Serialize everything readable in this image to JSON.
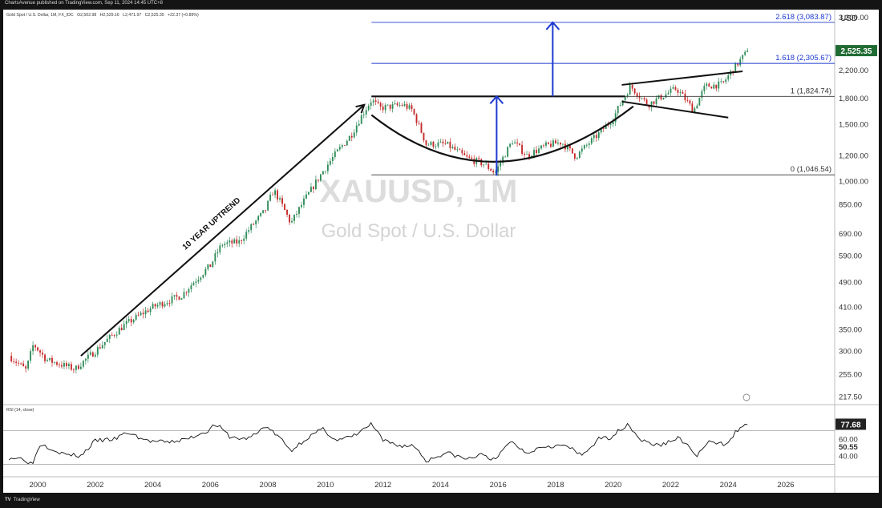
{
  "header": {
    "publisher": "ChartsAvenue published on TradingView.com, Sep 11, 2024 14:45 UTC+8"
  },
  "symbol_info": {
    "name": "Gold Spot / U.S. Dollar, 1M, FX_IDC",
    "open": "O2,502.98",
    "high": "H2,529.16",
    "low": "L2,471.97",
    "close": "C2,525.35",
    "change": "+22.37 (+0.89%)"
  },
  "watermark": {
    "ticker": "XAUUSD, 1M",
    "description": "Gold Spot / U.S. Dollar"
  },
  "colors": {
    "up": "#2e8b57",
    "down": "#c62828",
    "fib": "#1e3ad2",
    "arrow": "#1e3ad2",
    "line": "#111111",
    "price_badge": "#1f6b33",
    "rsi_line": "#111111"
  },
  "chart_data": [
    {
      "type": "candlestick",
      "title": "Gold Spot / U.S. Dollar, 1M, FX_IDC",
      "currency": "USD",
      "x_range": [
        1998.8,
        2027.7
      ],
      "y_range_log": [
        210,
        3300
      ],
      "y_scale": "log",
      "y_ticks": [
        "3,200.00",
        "2,200.00",
        "1,800.00",
        "1,500.00",
        "1,200.00",
        "1,000.00",
        "850.00",
        "690.00",
        "590.00",
        "490.00",
        "410.00",
        "350.00",
        "300.00",
        "255.00",
        "217.50"
      ],
      "y_tick_values": [
        3200,
        2200,
        1800,
        1500,
        1200,
        1000,
        850,
        690,
        590,
        490,
        410,
        350,
        300,
        255,
        217.5
      ],
      "x_ticks": [
        "2000",
        "2002",
        "2004",
        "2006",
        "2008",
        "2010",
        "2012",
        "2014",
        "2016",
        "2018",
        "2020",
        "2022",
        "2024",
        "2026"
      ],
      "x_tick_values": [
        2000,
        2002,
        2004,
        2006,
        2008,
        2010,
        2012,
        2014,
        2016,
        2018,
        2020,
        2022,
        2024,
        2026
      ],
      "anchors": [
        [
          1999.0,
          290
        ],
        [
          1999.6,
          262
        ],
        [
          1999.85,
          315
        ],
        [
          2000.3,
          282
        ],
        [
          2001.3,
          264
        ],
        [
          2002.0,
          300
        ],
        [
          2003.0,
          360
        ],
        [
          2004.0,
          410
        ],
        [
          2005.0,
          445
        ],
        [
          2006.0,
          550
        ],
        [
          2006.4,
          640
        ],
        [
          2007.0,
          650
        ],
        [
          2007.9,
          810
        ],
        [
          2008.2,
          940
        ],
        [
          2008.8,
          740
        ],
        [
          2009.5,
          940
        ],
        [
          2010.0,
          1100
        ],
        [
          2010.9,
          1390
        ],
        [
          2011.6,
          1780
        ],
        [
          2011.9,
          1680
        ],
        [
          2012.7,
          1720
        ],
        [
          2013.0,
          1660
        ],
        [
          2013.5,
          1300
        ],
        [
          2014.2,
          1300
        ],
        [
          2014.9,
          1180
        ],
        [
          2015.5,
          1130
        ],
        [
          2015.9,
          1060
        ],
        [
          2016.5,
          1330
        ],
        [
          2017.0,
          1200
        ],
        [
          2017.7,
          1290
        ],
        [
          2018.2,
          1320
        ],
        [
          2018.7,
          1190
        ],
        [
          2019.5,
          1400
        ],
        [
          2020.0,
          1560
        ],
        [
          2020.6,
          1960
        ],
        [
          2021.2,
          1720
        ],
        [
          2022.2,
          1930
        ],
        [
          2022.8,
          1650
        ],
        [
          2023.2,
          1960
        ],
        [
          2023.8,
          1990
        ],
        [
          2024.2,
          2230
        ],
        [
          2024.7,
          2525
        ]
      ],
      "last_price_label": "2,525.35",
      "watermark": "XAUUSD, 1M"
    },
    {
      "type": "line",
      "title": "RSI (14, close)",
      "y_range": [
        20,
        100
      ],
      "y_ticks": [
        "60.00",
        "40.00"
      ],
      "y_tick_values": [
        60,
        40
      ],
      "levels": [
        70,
        30
      ],
      "last_value_label": "77.68",
      "reference_label": "50.55",
      "anchors": [
        [
          1999.0,
          38
        ],
        [
          1999.5,
          37
        ],
        [
          1999.8,
          30
        ],
        [
          2000.1,
          55
        ],
        [
          2000.9,
          42
        ],
        [
          2001.5,
          40
        ],
        [
          2002.0,
          58
        ],
        [
          2002.7,
          60
        ],
        [
          2003.1,
          68
        ],
        [
          2003.8,
          58
        ],
        [
          2004.5,
          56
        ],
        [
          2005.2,
          60
        ],
        [
          2005.9,
          70
        ],
        [
          2006.2,
          78
        ],
        [
          2006.7,
          62
        ],
        [
          2007.2,
          60
        ],
        [
          2007.6,
          66
        ],
        [
          2007.9,
          76
        ],
        [
          2008.4,
          62
        ],
        [
          2008.8,
          46
        ],
        [
          2009.3,
          60
        ],
        [
          2009.9,
          72
        ],
        [
          2010.4,
          58
        ],
        [
          2011.0,
          64
        ],
        [
          2011.6,
          78
        ],
        [
          2012.0,
          58
        ],
        [
          2012.6,
          52
        ],
        [
          2013.1,
          52
        ],
        [
          2013.5,
          34
        ],
        [
          2014.2,
          44
        ],
        [
          2014.9,
          36
        ],
        [
          2015.5,
          42
        ],
        [
          2015.9,
          34
        ],
        [
          2016.4,
          58
        ],
        [
          2017.0,
          44
        ],
        [
          2017.6,
          52
        ],
        [
          2018.4,
          52
        ],
        [
          2018.9,
          40
        ],
        [
          2019.5,
          60
        ],
        [
          2019.9,
          62
        ],
        [
          2020.5,
          78
        ],
        [
          2021.0,
          58
        ],
        [
          2021.6,
          52
        ],
        [
          2022.3,
          62
        ],
        [
          2022.9,
          40
        ],
        [
          2023.3,
          56
        ],
        [
          2023.9,
          54
        ],
        [
          2024.3,
          70
        ],
        [
          2024.7,
          77.68
        ]
      ]
    }
  ],
  "fib_levels": [
    {
      "ratio": "2.618",
      "price_label": "2.618 (3,083.87)",
      "price": 3083.87
    },
    {
      "ratio": "1.618",
      "price_label": "1.618 (2,305.67)",
      "price": 2305.67
    },
    {
      "ratio": "1",
      "price_label": "1 (1,824.74)",
      "price": 1824.74
    },
    {
      "ratio": "0",
      "price_label": "0 (1,046.54)",
      "price": 1046.54
    }
  ],
  "annotations": {
    "uptrend_label": "10 YEAR UPTREND"
  },
  "price_axis": {
    "unit": "USD"
  },
  "footer": {
    "brand": "TradingView"
  }
}
